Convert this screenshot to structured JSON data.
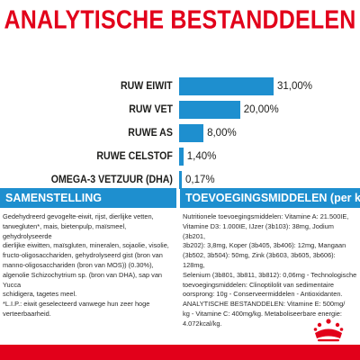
{
  "title": "ANALYTISCHE BESTANDDELEN",
  "colors": {
    "accent_red": "#e2001a",
    "bar_blue": "#1e8fcf",
    "text": "#1d1d1b"
  },
  "chart_data": {
    "type": "bar",
    "orientation": "horizontal",
    "categories": [
      "RUW EIWIT",
      "RUW VET",
      "RUWE AS",
      "RUWE CELSTOF",
      "OMEGA-3 VETZUUR (DHA)"
    ],
    "values": [
      31.0,
      20.0,
      8.0,
      1.4,
      0.17
    ],
    "value_labels": [
      "31,00%",
      "20,00%",
      "8,00%",
      "1,40%",
      "0,17%"
    ],
    "title": "ANALYTISCHE BESTANDDELEN",
    "xlabel": "",
    "ylabel": "",
    "xlim": [
      0,
      31
    ],
    "grid": false
  },
  "composition": {
    "heading": "SAMENSTELLING",
    "text": "Gedehydreerd gevogelte-eiwit, rijst, dierlijke vetten,\ntarwegluten*, mais, bietenpulp, maïsmeel, gehydrolyseerde\ndierlijke eiwitten, maïsgluten, mineralen, sojaolie, visolie,\nfructo-oligosacchariden, gehydrolyseerd gist (bron van\nmanno-oligosacchariden (bron van MOS)) (0.30%),\nalgenolie Schizochytrium sp. (bron van DHA), sap van Yucca\nschidigera, tagetes meel.\n*L.I.P.: eiwit geselecteerd vanwege hun zeer hoge\nverteerbaarheid."
  },
  "additives": {
    "heading": "TOEVOEGINGSMIDDELEN (per kg)",
    "text": "Nutritionele toevoegingsmiddelen: Vitamine A: 21.500IE,\nVitamine D3: 1.000IE, IJzer (3b103): 38mg, Jodium (3b201,\n3b202): 3,8mg, Koper (3b405, 3b406): 12mg, Mangaan\n(3b502, 3b504): 50mg, Zink (3b603, 3b605, 3b606): 128mg,\nSelenium (3b801, 3b811, 3b812): 0,06mg - Technologische\ntoevoegingsmiddelen: Clinoptilolit van sedimentaire\noorsprong: 10g - Conserveermiddelen - Antioxidanten.\nANALYTISCHE BESTANDDELEN: Vitamine E: 500mg/\nkg - Vitamine C: 400mg/kg. Metaboliseerbare energie:\n4.072kcal/kg."
  },
  "logo": {
    "icon": "crown-icon",
    "brand": "Royal Canin"
  }
}
